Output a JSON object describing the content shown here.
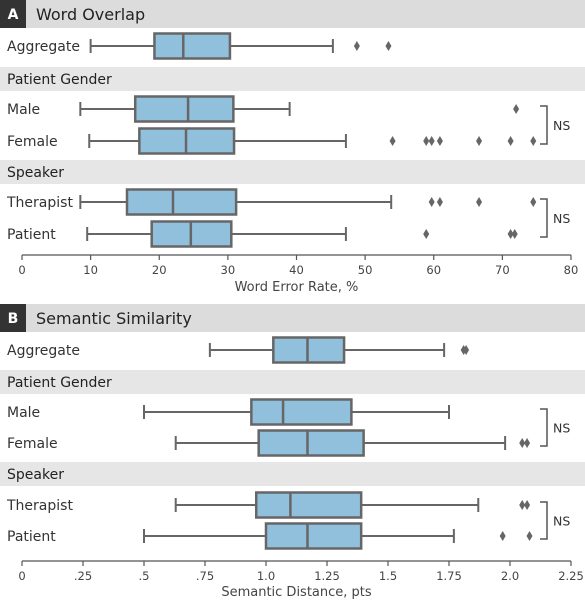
{
  "chart_data": [
    {
      "type": "box",
      "badge": "A",
      "title": "Word Overlap",
      "xlabel": "Word Error Rate, %",
      "xlim": [
        0,
        80
      ],
      "ticks": [
        0,
        10,
        20,
        30,
        40,
        50,
        60,
        70,
        80
      ],
      "tick_labels": [
        "0",
        "10",
        "20",
        "30",
        "40",
        "50",
        "60",
        "70",
        "80"
      ],
      "rows": [
        {
          "group": "",
          "label": "Aggregate",
          "whisker_low": 10,
          "q1": 19.3,
          "median": 23.5,
          "q3": 30.3,
          "whisker_high": 45.3,
          "outliers": [
            48.8,
            53.4
          ]
        },
        {
          "group": "Patient Gender",
          "label": "Male",
          "whisker_low": 8.5,
          "q1": 16.5,
          "median": 24.2,
          "q3": 30.8,
          "whisker_high": 39,
          "outliers": [
            72
          ]
        },
        {
          "group": "Patient Gender",
          "label": "Female",
          "whisker_low": 9.8,
          "q1": 17.1,
          "median": 23.9,
          "q3": 30.9,
          "whisker_high": 47.2,
          "outliers": [
            54,
            58.9,
            59.7,
            60.9,
            66.6,
            71.2,
            74.5
          ]
        },
        {
          "group": "Speaker",
          "label": "Therapist",
          "whisker_low": 8.5,
          "q1": 15.3,
          "median": 22,
          "q3": 31.2,
          "whisker_high": 53.8,
          "outliers": [
            59.7,
            60.9,
            66.6,
            74.5
          ]
        },
        {
          "group": "Speaker",
          "label": "Patient",
          "whisker_low": 9.5,
          "q1": 18.9,
          "median": 24.6,
          "q3": 30.5,
          "whisker_high": 47.2,
          "outliers": [
            58.9,
            71.2,
            71.8
          ]
        }
      ],
      "groups": [
        "Patient Gender",
        "Speaker"
      ],
      "annotations": [
        "NS",
        "NS"
      ]
    },
    {
      "type": "box",
      "badge": "B",
      "title": "Semantic Similarity",
      "xlabel": "Semantic Distance, pts",
      "xlim": [
        0,
        2.25
      ],
      "ticks": [
        0,
        0.25,
        0.5,
        0.75,
        1.0,
        1.25,
        1.5,
        1.75,
        2.0,
        2.25
      ],
      "tick_labels": [
        "0",
        ".25",
        ".5",
        ".75",
        "1.0",
        "1.25",
        "1.5",
        "1.75",
        "2.0",
        "2.25"
      ],
      "rows": [
        {
          "group": "",
          "label": "Aggregate",
          "whisker_low": 0.77,
          "q1": 1.03,
          "median": 1.17,
          "q3": 1.32,
          "whisker_high": 1.73,
          "outliers": [
            1.81,
            1.82
          ]
        },
        {
          "group": "Patient Gender",
          "label": "Male",
          "whisker_low": 0.5,
          "q1": 0.94,
          "median": 1.07,
          "q3": 1.35,
          "whisker_high": 1.75,
          "outliers": []
        },
        {
          "group": "Patient Gender",
          "label": "Female",
          "whisker_low": 0.63,
          "q1": 0.97,
          "median": 1.17,
          "q3": 1.4,
          "whisker_high": 1.98,
          "outliers": [
            2.05,
            2.07
          ]
        },
        {
          "group": "Speaker",
          "label": "Therapist",
          "whisker_low": 0.63,
          "q1": 0.96,
          "median": 1.1,
          "q3": 1.39,
          "whisker_high": 1.87,
          "outliers": [
            2.05,
            2.07
          ]
        },
        {
          "group": "Speaker",
          "label": "Patient",
          "whisker_low": 0.5,
          "q1": 1.0,
          "median": 1.17,
          "q3": 1.39,
          "whisker_high": 1.77,
          "outliers": [
            1.97,
            2.08
          ]
        }
      ],
      "groups": [
        "Patient Gender",
        "Speaker"
      ],
      "annotations": [
        "NS",
        "NS"
      ]
    }
  ],
  "colors": {
    "box_fill": "#91c0dd",
    "box_stroke": "#666666",
    "header_band": "#dcdcdc",
    "badge": "#333333"
  }
}
